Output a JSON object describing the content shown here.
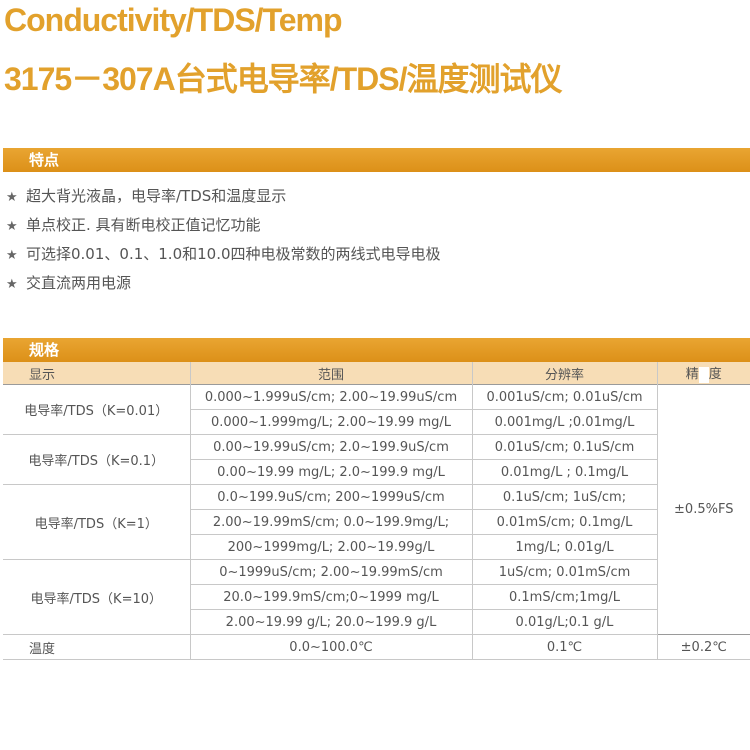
{
  "title": {
    "line1": "Conductivity/TDS/Temp",
    "line2": "3175－307A台式电导率/TDS/温度测试仪"
  },
  "features": {
    "heading": "特点",
    "bullet_icon": "star-icon",
    "items": [
      "超大背光液晶，电导率/TDS和温度显示",
      "单点校正. 具有断电校正值记忆功能",
      "可选择0.01、0.1、1.0和10.0四种电极常数的两线式电导电极",
      "交直流两用电源"
    ]
  },
  "specs": {
    "heading": "规格",
    "columns": [
      "显示",
      "范围",
      "分辨率",
      "精",
      "度"
    ],
    "groups": [
      {
        "label": "电导率/TDS（K=0.01）",
        "rows": [
          {
            "range": "0.000~1.999uS/cm; 2.00~19.99uS/cm",
            "resolution": "0.001uS/cm; 0.01uS/cm"
          },
          {
            "range": "0.000~1.999mg/L; 2.00~19.99 mg/L",
            "resolution": "0.001mg/L ;0.01mg/L"
          }
        ]
      },
      {
        "label": "电导率/TDS（K=0.1）",
        "rows": [
          {
            "range": "0.00~19.99uS/cm; 2.0~199.9uS/cm",
            "resolution": "0.01uS/cm; 0.1uS/cm"
          },
          {
            "range": "0.00~19.99 mg/L; 2.0~199.9 mg/L",
            "resolution": "0.01mg/L ; 0.1mg/L"
          }
        ]
      },
      {
        "label": "电导率/TDS（K=1）",
        "rows": [
          {
            "range": "0.0~199.9uS/cm; 200~1999uS/cm",
            "resolution": "0.1uS/cm; 1uS/cm;"
          },
          {
            "range": "2.00~19.99mS/cm;  0.0~199.9mg/L;",
            "resolution": "0.01mS/cm; 0.1mg/L"
          },
          {
            "range": "200~1999mg/L; 2.00~19.99g/L",
            "resolution": "1mg/L; 0.01g/L"
          }
        ]
      },
      {
        "label": "电导率/TDS（K=10）",
        "rows": [
          {
            "range": "0~1999uS/cm; 2.00~19.99mS/cm",
            "resolution": "1uS/cm; 0.01mS/cm"
          },
          {
            "range": "20.0~199.9mS/cm;0~1999 mg/L",
            "resolution": "0.1mS/cm;1mg/L"
          },
          {
            "range": "2.00~19.99 g/L; 20.0~199.9 g/L",
            "resolution": "0.01g/L;0.1 g/L"
          }
        ]
      }
    ],
    "conductivity_accuracy": "±0.5%FS",
    "temperature": {
      "label": "温度",
      "range": "0.0~100.0℃",
      "resolution": "0.1℃",
      "accuracy": "±0.2℃"
    }
  }
}
